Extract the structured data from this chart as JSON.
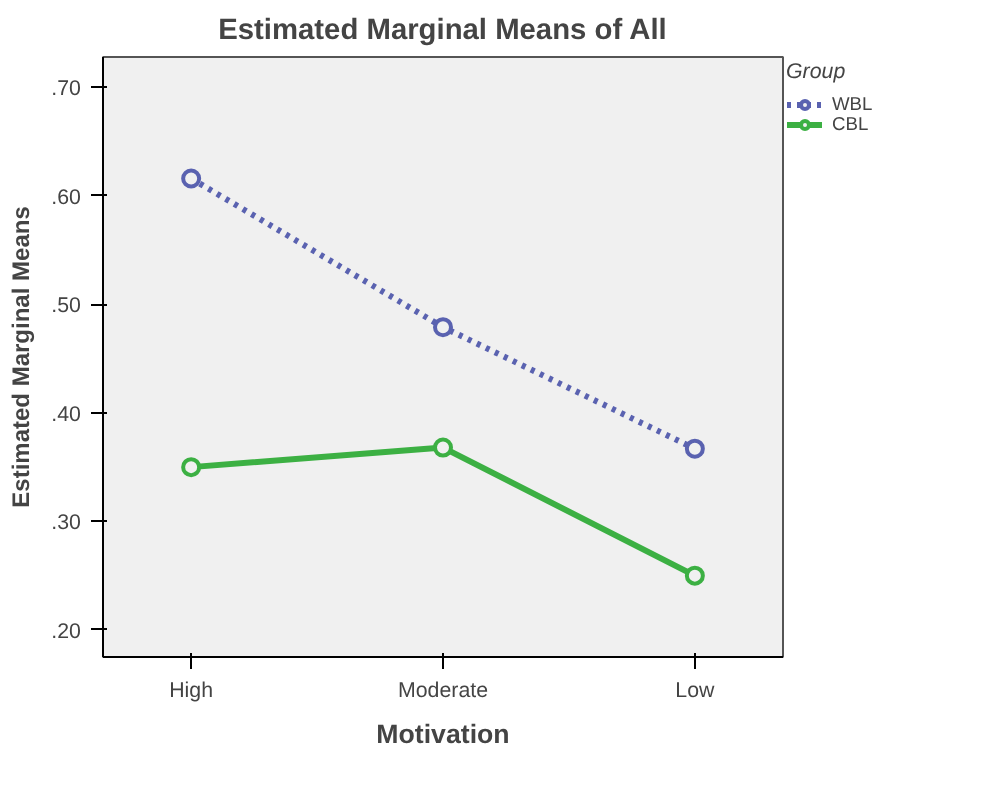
{
  "chart_data": {
    "type": "line",
    "title": "Estimated Marginal Means of All",
    "xlabel": "Motivation",
    "ylabel": "Estimated Marginal Means",
    "legend_title": "Group",
    "categories": [
      "High",
      "Moderate",
      "Low"
    ],
    "series": [
      {
        "name": "WBL",
        "color": "#5a62b0",
        "values": [
          0.616,
          0.479,
          0.367
        ],
        "line_style": "dotted"
      },
      {
        "name": "CBL",
        "color": "#3cb043",
        "values": [
          0.35,
          0.368,
          0.25
        ],
        "line_style": "solid"
      }
    ],
    "ylim": [
      0.175,
      0.728
    ],
    "yticks": [
      {
        "value": 0.2,
        "label": ".20"
      },
      {
        "value": 0.3,
        "label": ".30"
      },
      {
        "value": 0.4,
        "label": ".40"
      },
      {
        "value": 0.5,
        "label": ".50"
      },
      {
        "value": 0.6,
        "label": ".60"
      },
      {
        "value": 0.7,
        "label": ".70"
      }
    ],
    "marker": "circle",
    "legend": "top right"
  }
}
